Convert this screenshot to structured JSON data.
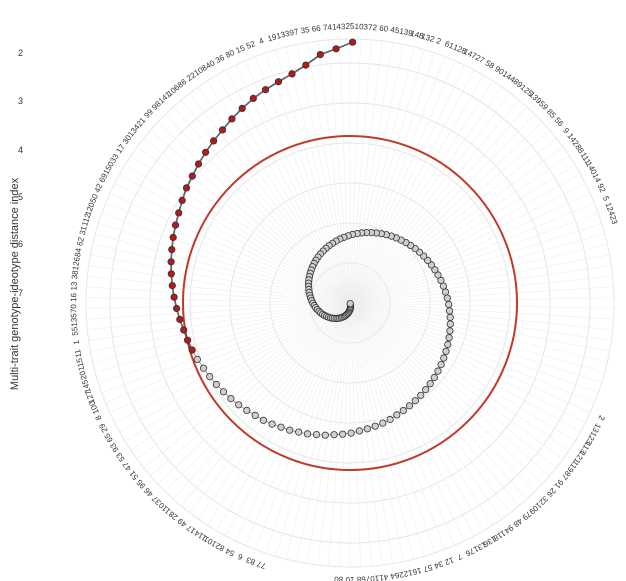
{
  "chart_data": {
    "type": "scatter",
    "ylabel": "Multi-trait genotype-ideotype distance index",
    "radial_ticks": [
      "2",
      "3",
      "4",
      "5",
      "6",
      "7"
    ],
    "angular_labels": [
      "25",
      "103",
      "72",
      "60",
      "45",
      "139",
      "148",
      "132",
      "2",
      "61",
      "128",
      "147",
      "27",
      "58",
      "90",
      "144",
      "89",
      "125",
      "139",
      "59",
      "85",
      "56",
      "9",
      "142",
      "88",
      "111",
      "140",
      "14",
      "92",
      "5",
      "124",
      "23",
      "",
      "",
      "",
      "",
      "",
      "",
      "",
      "",
      "",
      "",
      "",
      "",
      "",
      "",
      "",
      "",
      "",
      "2",
      "13",
      "123",
      "113",
      "121",
      "119",
      "87",
      "91",
      "26",
      "32",
      "109",
      "79",
      "48",
      "94",
      "118",
      "136",
      "131",
      "76",
      "7",
      "12",
      "34",
      "57",
      "16",
      "122",
      "64",
      "41",
      "107",
      "68",
      "10",
      "80",
      "",
      "",
      "",
      "",
      "",
      "",
      "77",
      "83",
      "6",
      "54",
      "82",
      "101",
      "114",
      "17",
      "49",
      "28",
      "110",
      "37",
      "46",
      "95",
      "51",
      "47",
      "53",
      "93",
      "65",
      "29",
      "8",
      "100",
      "127",
      "145",
      "20",
      "115",
      "11",
      "1",
      "55",
      "135",
      "70",
      "16",
      "13",
      "38",
      "126",
      "84",
      "62",
      "31",
      "112",
      "120",
      "50",
      "42",
      "69",
      "150",
      "33",
      "17",
      "30",
      "134",
      "21",
      "99",
      "98",
      "141",
      "106",
      "86",
      "22",
      "108",
      "40",
      "36",
      "80",
      "15",
      "52",
      "4",
      "19",
      "133",
      "97",
      "35",
      "66",
      "74",
      "143"
    ],
    "cutoff_radius": 5.15,
    "selected_color": "#b31b1b",
    "unselected_color": "#cfcfcf",
    "cutoff_color": "#c0392b",
    "n_selected": 30,
    "index_values": [
      7.05,
      6.95,
      6.88,
      6.75,
      6.66,
      6.6,
      6.55,
      6.5,
      6.44,
      6.38,
      6.32,
      6.27,
      6.22,
      6.17,
      6.12,
      6.08,
      6.03,
      5.98,
      5.94,
      5.9,
      5.86,
      5.82,
      5.78,
      5.74,
      5.7,
      5.66,
      5.62,
      5.58,
      5.55,
      5.52,
      5.49,
      5.45,
      5.42,
      5.39,
      5.36,
      5.33,
      5.3,
      5.27,
      5.24,
      5.22,
      5.19,
      5.16,
      5.14,
      5.11,
      5.09,
      5.06,
      5.04,
      5.01,
      4.99,
      4.97,
      4.94,
      4.92,
      4.9,
      4.88,
      4.86,
      4.83,
      4.81,
      4.79,
      4.77,
      4.75,
      4.73,
      4.71,
      4.69,
      4.67,
      4.65,
      4.63,
      4.61,
      4.59,
      4.57,
      4.55,
      4.53,
      4.51,
      4.49,
      4.47,
      4.45,
      4.43,
      4.41,
      4.39,
      4.37,
      4.35,
      4.33,
      4.31,
      4.29,
      4.27,
      4.25,
      4.23,
      4.21,
      4.19,
      4.17,
      4.15,
      4.13,
      4.11,
      4.09,
      4.07,
      4.05,
      4.03,
      4.01,
      3.99,
      3.97,
      3.95,
      3.93,
      3.91,
      3.89,
      3.87,
      3.85,
      3.83,
      3.81,
      3.79,
      3.77,
      3.75,
      3.73,
      3.71,
      3.69,
      3.67,
      3.65,
      3.63,
      3.61,
      3.59,
      3.57,
      3.55,
      3.53,
      3.51,
      3.49,
      3.47,
      3.45,
      3.43,
      3.41,
      3.39,
      3.37,
      3.35,
      3.33,
      3.31,
      3.29,
      3.27,
      3.25,
      3.23,
      3.21,
      3.19,
      3.17,
      3.15,
      3.13,
      3.11,
      3.09,
      3.07,
      3.05,
      3.03,
      3.01,
      2.99,
      2.97,
      2.95,
      2.93,
      2.91
    ]
  }
}
